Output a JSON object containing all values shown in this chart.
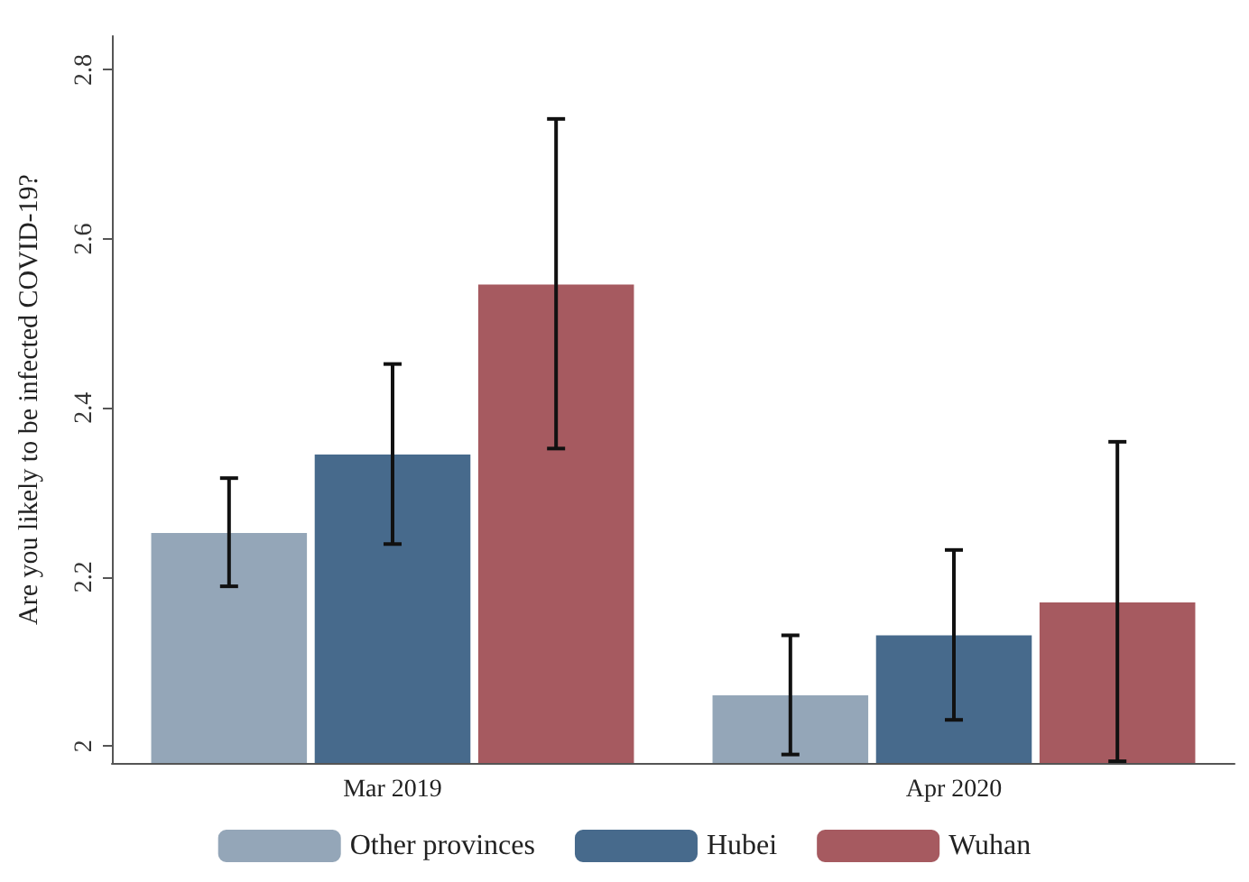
{
  "chart_data": {
    "type": "bar",
    "ylabel": "Are you likely to be infected COVID-19?",
    "categories": [
      "Mar 2019",
      "Apr 2020"
    ],
    "series": [
      {
        "name": "Other provinces",
        "color": "#94a6b8",
        "values": [
          2.252,
          2.06
        ],
        "errors": [
          [
            2.189,
            2.317
          ],
          [
            1.99,
            2.131
          ]
        ]
      },
      {
        "name": "Hubei",
        "color": "#476a8c",
        "values": [
          2.345,
          2.131
        ],
        "errors": [
          [
            2.239,
            2.452
          ],
          [
            2.031,
            2.232
          ]
        ]
      },
      {
        "name": "Wuhan",
        "color": "#a65a60",
        "values": [
          2.546,
          2.17
        ],
        "errors": [
          [
            2.352,
            2.742
          ],
          [
            1.982,
            2.36
          ]
        ]
      }
    ],
    "ylim": [
      1.98,
      2.84
    ],
    "yticks": [
      2,
      2.2,
      2.4,
      2.6,
      2.8
    ],
    "grid": false,
    "legend": "bottom"
  }
}
